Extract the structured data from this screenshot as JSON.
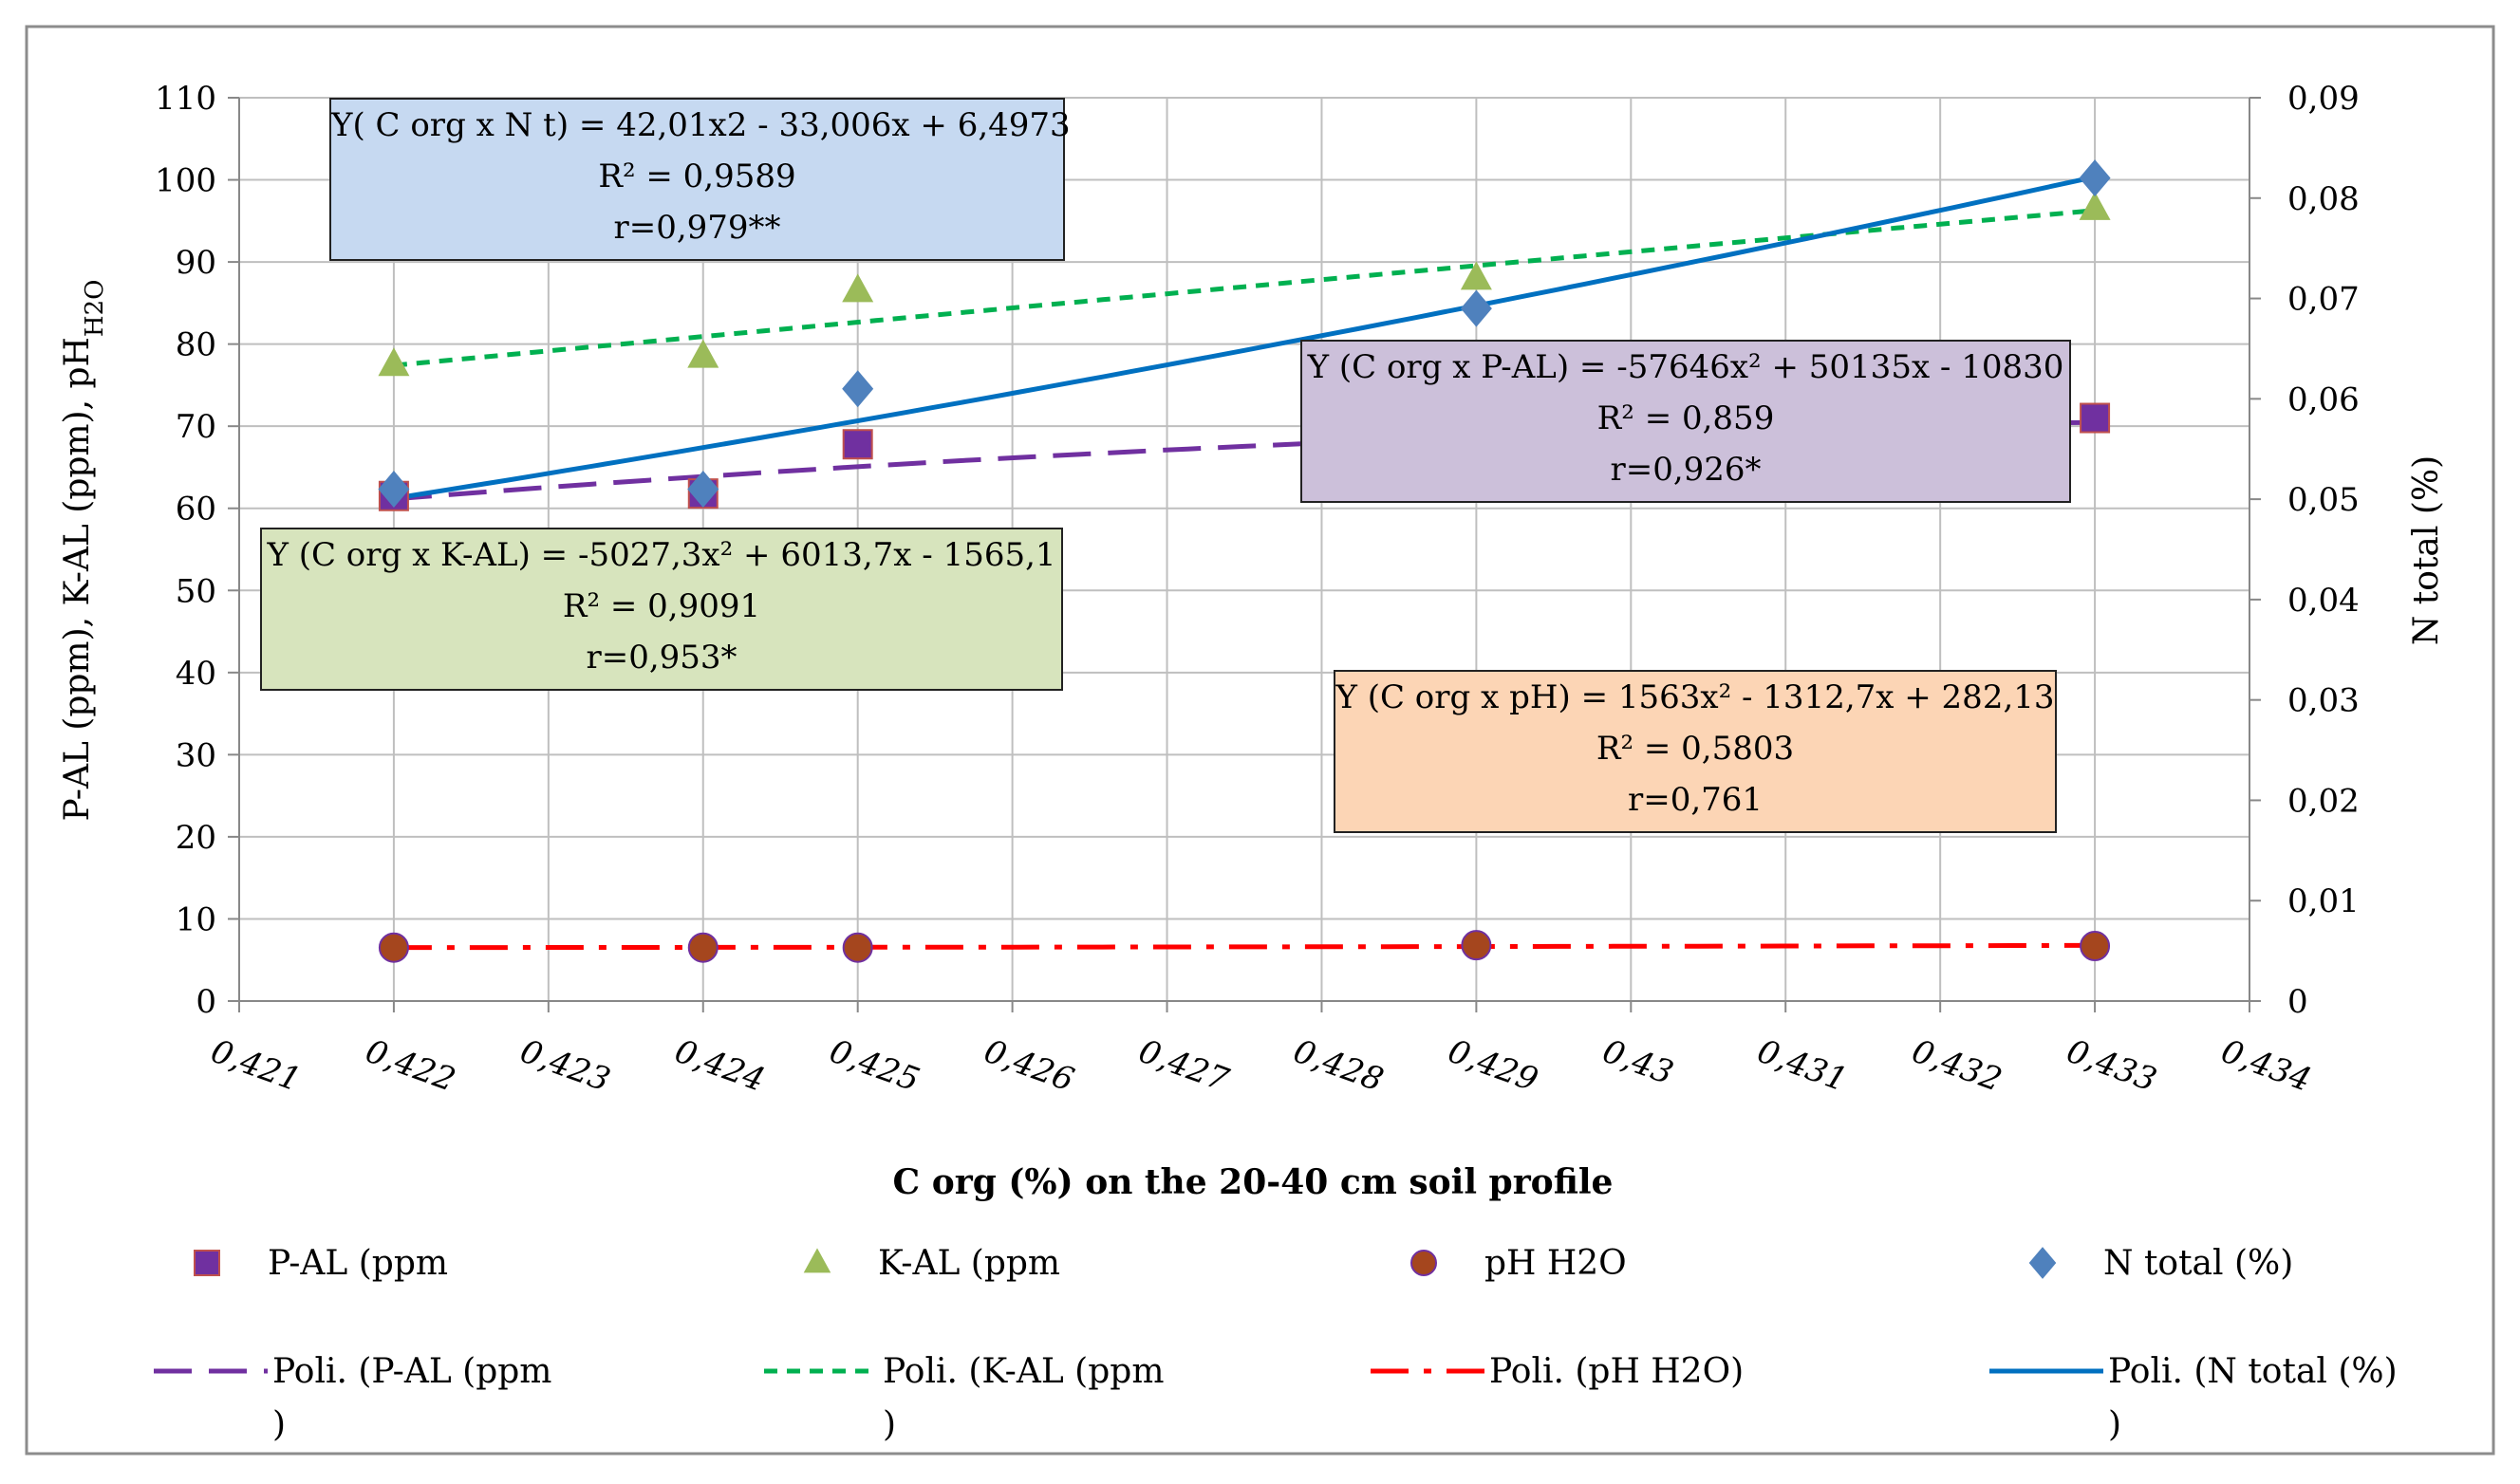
{
  "chart_data": {
    "type": "scatter",
    "title": "",
    "xlabel": "C org (%) on the 20-40 cm soil profile",
    "ylabel_left": "P-AL (ppm), K-AL (ppm), pH",
    "ylabel_left_sub": "H2O",
    "ylabel_right": "N total (%)",
    "xlim": [
      0.421,
      0.434
    ],
    "ylim_left": [
      0,
      110
    ],
    "ylim_right": [
      0,
      0.09
    ],
    "x_ticks": [
      "0,421",
      "0,422",
      "0,423",
      "0,424",
      "0,425",
      "0,426",
      "0,427",
      "0,428",
      "0,429",
      "0,43",
      "0,431",
      "0,432",
      "0,433",
      "0,434"
    ],
    "y_left_ticks": [
      "0",
      "10",
      "20",
      "30",
      "40",
      "50",
      "60",
      "70",
      "80",
      "90",
      "100",
      "110"
    ],
    "y_right_ticks": [
      "0",
      "0,01",
      "0,02",
      "0,03",
      "0,04",
      "0,05",
      "0,06",
      "0,07",
      "0,08",
      "0,09"
    ],
    "grid": true,
    "x": [
      0.422,
      0.424,
      0.425,
      0.429,
      0.433
    ],
    "series": [
      {
        "name": "P-AL (ppm",
        "axis": "left",
        "marker": "square",
        "color": "#7030a0",
        "values": [
          61.5,
          61.8,
          67.8,
          68.5,
          71.0
        ],
        "trend": {
          "name": "Poli. (P-AL (ppm\n)",
          "a": -57646,
          "b": 50135,
          "c": -10830,
          "style": "dash",
          "color": "#7030a0"
        }
      },
      {
        "name": "K-AL (ppm",
        "axis": "left",
        "marker": "triangle",
        "color": "#9bbb59",
        "values": [
          77.5,
          78.5,
          86.5,
          88.0,
          96.5
        ],
        "trend": {
          "name": "Poli. (K-AL (ppm\n)",
          "a": -5027.3,
          "b": 6013.7,
          "c": -1565.1,
          "style": "dot",
          "color": "#00b050"
        }
      },
      {
        "name": "pH H2O",
        "axis": "left",
        "marker": "circle",
        "color": "#a5461e",
        "values": [
          6.5,
          6.5,
          6.5,
          6.8,
          6.7
        ],
        "trend": {
          "name": "Poli. (pH H2O)",
          "a": 1563,
          "b": -1312.7,
          "c": 282.13,
          "style": "dashdot",
          "color": "#ff0000"
        }
      },
      {
        "name": "N total (%)",
        "axis": "right",
        "marker": "diamond",
        "color": "#4f81bd",
        "values": [
          0.051,
          0.051,
          0.061,
          0.069,
          0.082
        ],
        "trend": {
          "name": "Poli. (N total (%)\n)",
          "a": 42.01,
          "b": -33.006,
          "c": 6.4973,
          "style": "solid",
          "color": "#0070c0"
        }
      }
    ],
    "annotations": [
      {
        "id": "nt",
        "color": "#c6d9f1",
        "lines": [
          "Y( C org x N t) = 42,01x2 - 33,006x + 6,4973",
          "R² = 0,9589",
          "r=0,979**"
        ]
      },
      {
        "id": "pal",
        "color": "#ccc0da",
        "lines": [
          "Y (C org x P-AL) = -57646x² + 50135x - 10830",
          "R² = 0,859",
          "r=0,926*"
        ]
      },
      {
        "id": "kal",
        "color": "#d7e4bd",
        "lines": [
          "Y (C org x K-AL) = -5027,3x² + 6013,7x - 1565,1",
          "R² = 0,9091",
          "r=0,953*"
        ]
      },
      {
        "id": "ph",
        "color": "#fcd5b5",
        "lines": [
          "Y (C org x pH) = 1563x² - 1312,7x + 282,13",
          "R² = 0,5803",
          "r=0,761"
        ]
      }
    ]
  }
}
